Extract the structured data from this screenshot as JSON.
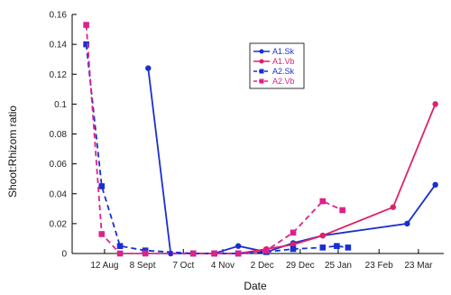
{
  "chart_data": {
    "type": "line",
    "title": "",
    "xlabel": "Date",
    "ylabel": "Shoot:Rhizom ratio",
    "ylim": [
      0,
      0.16
    ],
    "y_ticks": [
      "0",
      "0.02",
      "0.04",
      "0.06",
      "0.08",
      "0.1",
      "0.12",
      "0.14",
      "0.16"
    ],
    "x_domain": [
      "1992-07-20",
      "1993-04-10"
    ],
    "x_ticks": [
      {
        "date": "1992-08-12",
        "label": "12 Aug"
      },
      {
        "date": "1992-09-08",
        "label": "8 Sept"
      },
      {
        "date": "1992-10-07",
        "label": "7 Oct"
      },
      {
        "date": "1992-11-04",
        "label": "4 Nov"
      },
      {
        "date": "1992-12-02",
        "label": "2 Dec"
      },
      {
        "date": "1992-12-29",
        "label": "29 Dec"
      },
      {
        "date": "1993-01-25",
        "label": "25 Jan"
      },
      {
        "date": "1993-02-23",
        "label": "23 Feb"
      },
      {
        "date": "1993-03-23",
        "label": "23 Mar"
      }
    ],
    "grid": false,
    "legend_position": "top-right",
    "series": [
      {
        "name": "A1.Sk",
        "color": "#1a2fd0",
        "dashed": false,
        "marker": "circle",
        "points": [
          [
            "1992-09-12",
            0.124
          ],
          [
            "1992-09-28",
            0.0
          ],
          [
            "1992-10-14",
            0.0
          ],
          [
            "1992-10-29",
            0.0
          ],
          [
            "1992-11-15",
            0.005
          ],
          [
            "1992-12-05",
            0.001
          ],
          [
            "1992-12-24",
            0.007
          ],
          [
            "1993-01-14",
            0.012
          ],
          [
            "1993-03-15",
            0.02
          ],
          [
            "1993-04-04",
            0.046
          ]
        ]
      },
      {
        "name": "A1.Vb",
        "color": "#e0206a",
        "dashed": false,
        "marker": "circle",
        "points": [
          [
            "1992-10-14",
            0.0
          ],
          [
            "1992-11-15",
            0.0
          ],
          [
            "1992-12-05",
            0.003
          ],
          [
            "1992-12-24",
            0.006
          ],
          [
            "1993-01-14",
            0.012
          ],
          [
            "1993-03-05",
            0.031
          ],
          [
            "1993-04-04",
            0.1
          ]
        ]
      },
      {
        "name": "A2.Sk",
        "color": "#1a2fd0",
        "dashed": true,
        "marker": "square",
        "points": [
          [
            "1992-07-30",
            0.14
          ],
          [
            "1992-08-10",
            0.045
          ],
          [
            "1992-08-23",
            0.005
          ],
          [
            "1992-09-10",
            0.002
          ],
          [
            "1992-10-14",
            0.0
          ],
          [
            "1992-10-29",
            0.0
          ],
          [
            "1992-11-15",
            0.0
          ],
          [
            "1992-12-05",
            0.001
          ],
          [
            "1992-12-24",
            0.003
          ],
          [
            "1993-01-14",
            0.004
          ],
          [
            "1993-01-24",
            0.005
          ],
          [
            "1993-02-01",
            0.004
          ]
        ]
      },
      {
        "name": "A2.Vb",
        "color": "#e0208a",
        "dashed": true,
        "marker": "square",
        "points": [
          [
            "1992-07-30",
            0.153
          ],
          [
            "1992-08-10",
            0.013
          ],
          [
            "1992-08-23",
            0.0
          ],
          [
            "1992-09-10",
            0.0
          ],
          [
            "1992-10-14",
            0.0
          ],
          [
            "1992-10-29",
            0.0
          ],
          [
            "1992-11-15",
            0.0
          ],
          [
            "1992-12-05",
            0.002
          ],
          [
            "1992-12-24",
            0.014
          ],
          [
            "1993-01-14",
            0.035
          ],
          [
            "1993-01-28",
            0.029
          ]
        ]
      }
    ]
  }
}
